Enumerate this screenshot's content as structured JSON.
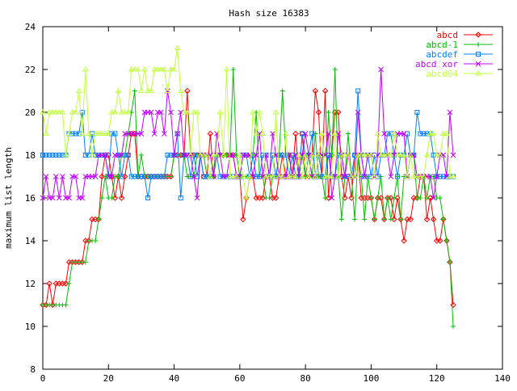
{
  "chart_data": {
    "type": "line",
    "title": "Hash size 16383",
    "xlabel": "",
    "ylabel": "maximum list length",
    "xlim": [
      0,
      140
    ],
    "ylim": [
      8,
      24
    ],
    "xticks": [
      0,
      20,
      40,
      60,
      80,
      100,
      120,
      140
    ],
    "yticks": [
      8,
      10,
      12,
      14,
      16,
      18,
      20,
      22,
      24
    ],
    "legend_position": "top-right",
    "grid": false,
    "series": [
      {
        "name": "abcd",
        "color": "#ff0000",
        "marker": "diamond",
        "values": [
          11,
          11,
          12,
          11,
          12,
          12,
          12,
          12,
          13,
          13,
          13,
          13,
          13,
          14,
          14,
          15,
          15,
          15,
          17,
          18,
          18,
          17,
          16,
          17,
          16,
          17,
          18,
          19,
          19,
          17,
          17,
          17,
          17,
          17,
          17,
          17,
          17,
          17,
          17,
          17,
          18,
          18,
          18,
          18,
          21,
          18,
          18,
          18,
          18,
          17,
          17,
          19,
          17,
          18,
          18,
          18,
          18,
          18,
          18,
          17,
          17,
          15,
          16,
          17,
          17,
          16,
          16,
          16,
          17,
          17,
          16,
          16,
          17,
          18,
          17,
          18,
          17,
          19,
          17,
          19,
          17,
          17,
          18,
          21,
          20,
          17,
          21,
          16,
          18,
          20,
          20,
          17,
          16,
          17,
          16,
          18,
          18,
          16,
          16,
          16,
          16,
          15,
          16,
          16,
          15,
          16,
          16,
          15,
          16,
          15,
          14,
          15,
          15,
          16,
          16,
          17,
          17,
          15,
          16,
          15,
          14,
          14,
          15,
          14,
          13,
          11
        ]
      },
      {
        "name": "abcd-1",
        "color": "#00c000",
        "marker": "plus",
        "values": [
          11,
          11,
          11,
          11,
          11,
          11,
          11,
          11,
          12,
          13,
          13,
          13,
          13,
          13,
          14,
          14,
          14,
          15,
          16,
          17,
          16,
          16,
          17,
          17,
          18,
          18,
          19,
          20,
          21,
          17,
          18,
          17,
          17,
          17,
          17,
          17,
          17,
          17,
          17,
          17,
          18,
          18,
          18,
          18,
          17,
          17,
          17,
          18,
          18,
          18,
          17,
          17,
          17,
          18,
          18,
          18,
          18,
          18,
          22,
          18,
          17,
          17,
          17,
          17,
          18,
          20,
          17,
          17,
          16,
          16,
          17,
          17,
          18,
          21,
          18,
          18,
          17,
          18,
          17,
          18,
          17,
          18,
          17,
          19,
          17,
          17,
          16,
          20,
          18,
          22,
          17,
          15,
          17,
          19,
          17,
          15,
          18,
          17,
          15,
          17,
          16,
          15,
          16,
          17,
          15,
          16,
          15,
          16,
          17,
          15,
          17,
          17,
          18,
          18,
          16,
          16,
          17,
          16,
          17,
          17,
          16,
          16,
          15,
          14,
          13,
          10
        ]
      },
      {
        "name": "abcdef",
        "color": "#0080ff",
        "marker": "square",
        "values": [
          18,
          18,
          18,
          18,
          18,
          18,
          18,
          18,
          19,
          19,
          19,
          19,
          20,
          18,
          18,
          19,
          18,
          18,
          18,
          18,
          17,
          19,
          19,
          18,
          17,
          18,
          18,
          17,
          17,
          17,
          17,
          17,
          16,
          17,
          17,
          17,
          17,
          17,
          18,
          18,
          18,
          19,
          16,
          18,
          18,
          17,
          18,
          17,
          18,
          17,
          17,
          17,
          18,
          18,
          17,
          17,
          17,
          17,
          17,
          17,
          17,
          18,
          18,
          17,
          18,
          17,
          17,
          18,
          18,
          17,
          18,
          17,
          18,
          18,
          18,
          17,
          18,
          17,
          17,
          19,
          18,
          18,
          19,
          17,
          18,
          17,
          17,
          18,
          17,
          17,
          18,
          18,
          17,
          17,
          17,
          18,
          21,
          18,
          17,
          18,
          17,
          18,
          17,
          18,
          18,
          19,
          19,
          18,
          17,
          18,
          18,
          19,
          18,
          18,
          20,
          19,
          19,
          19,
          19,
          18,
          17,
          17,
          17,
          17,
          17,
          17
        ]
      },
      {
        "name": "abcd xor",
        "color": "#c000ff",
        "marker": "cross",
        "values": [
          16,
          17,
          16,
          16,
          17,
          16,
          17,
          16,
          16,
          17,
          17,
          16,
          16,
          17,
          17,
          17,
          17,
          18,
          18,
          18,
          17,
          17,
          18,
          18,
          18,
          19,
          19,
          19,
          19,
          19,
          19,
          20,
          20,
          20,
          19,
          20,
          20,
          19,
          21,
          20,
          18,
          19,
          20,
          18,
          18,
          18,
          17,
          16,
          18,
          18,
          18,
          18,
          17,
          19,
          18,
          17,
          17,
          18,
          18,
          17,
          17,
          18,
          18,
          18,
          17,
          18,
          19,
          17,
          18,
          17,
          19,
          18,
          17,
          17,
          17,
          18,
          17,
          18,
          17,
          18,
          19,
          18,
          17,
          17,
          18,
          18,
          18,
          19,
          16,
          17,
          19,
          18,
          17,
          18,
          17,
          17,
          20,
          18,
          17,
          18,
          18,
          17,
          18,
          22,
          19,
          18,
          17,
          18,
          19,
          19,
          19,
          17,
          18,
          18,
          17,
          17,
          17,
          17,
          17,
          16,
          17,
          18,
          18,
          17,
          20,
          18
        ]
      },
      {
        "name": "abcd64",
        "color": "#c0ff40",
        "marker": "triangle",
        "values": [
          20,
          19,
          20,
          20,
          20,
          20,
          20,
          18,
          19,
          20,
          20,
          21,
          19,
          22,
          19,
          18,
          19,
          19,
          19,
          19,
          19,
          20,
          20,
          21,
          20,
          20,
          20,
          22,
          22,
          22,
          21,
          22,
          21,
          21,
          22,
          22,
          22,
          22,
          21,
          22,
          22,
          23,
          21,
          20,
          20,
          18,
          20,
          20,
          18,
          18,
          18,
          17,
          18,
          18,
          20,
          18,
          22,
          17,
          17,
          17,
          18,
          17,
          16,
          17,
          20,
          19,
          20,
          19,
          17,
          17,
          17,
          20,
          17,
          17,
          19,
          17,
          17,
          17,
          18,
          17,
          18,
          17,
          18,
          17,
          18,
          19,
          17,
          17,
          17,
          19,
          17,
          18,
          18,
          18,
          17,
          17,
          18,
          18,
          18,
          18,
          18,
          17,
          19,
          18,
          18,
          18,
          18,
          19,
          18,
          18,
          18,
          17,
          18,
          17,
          17,
          17,
          17,
          18,
          19,
          19,
          18,
          18,
          19,
          19,
          17,
          17
        ]
      }
    ]
  }
}
